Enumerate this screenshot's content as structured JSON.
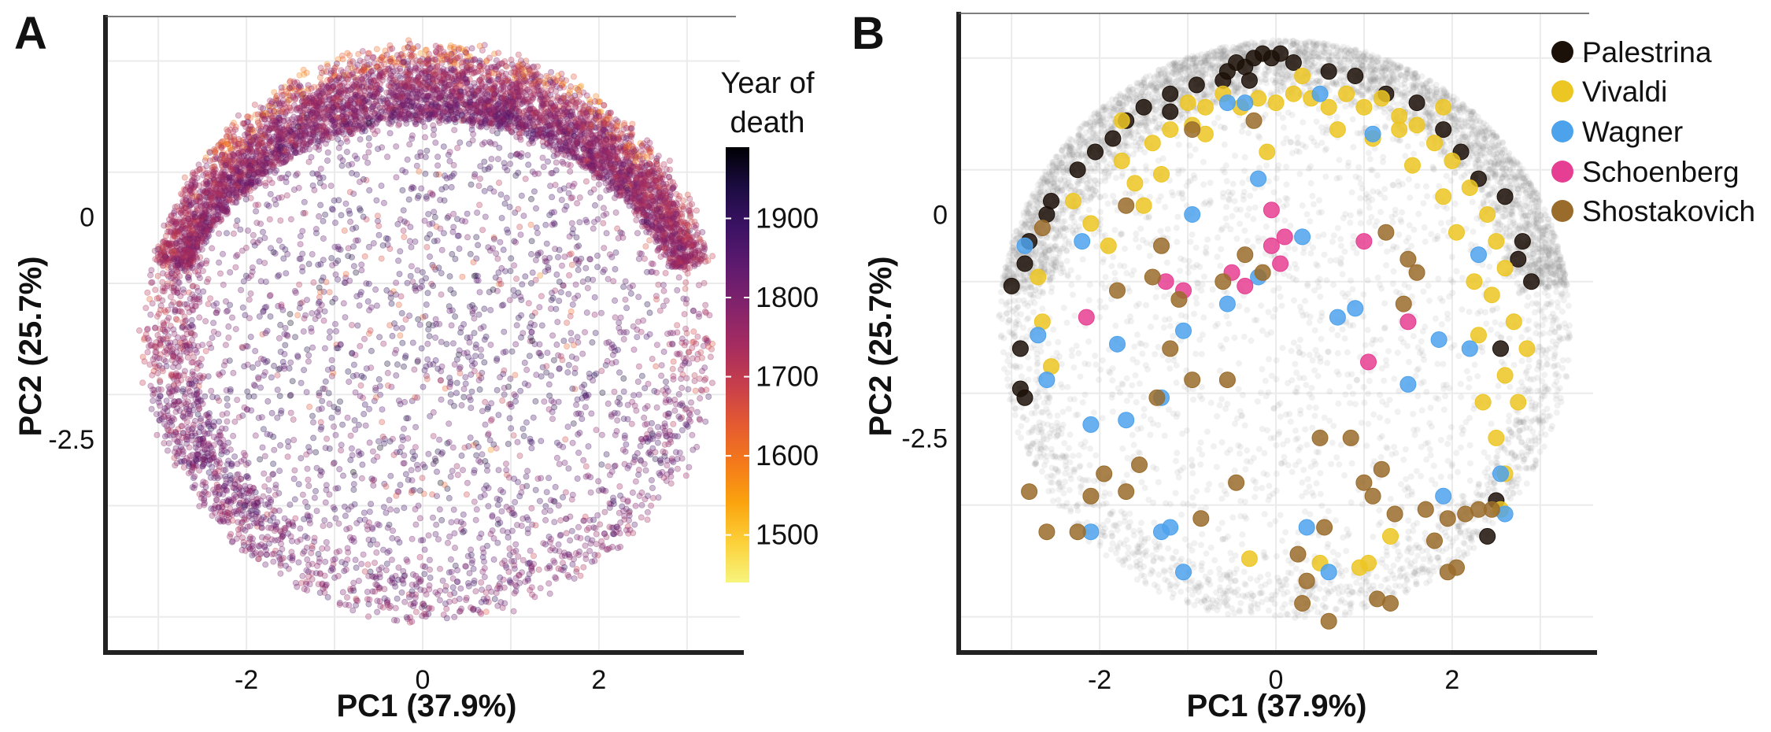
{
  "colors": {
    "inferno_ramp": [
      "#f7f47d",
      "#fcd13a",
      "#fba40e",
      "#f47a1a",
      "#e45a31",
      "#c73e4c",
      "#a52c60",
      "#83236c",
      "#5e1a6e",
      "#3b1264",
      "#1b0c41",
      "#000004"
    ],
    "background_points": "#888888",
    "axis": "#222222",
    "grid": "#ebebeb"
  },
  "chart_data": [
    {
      "panel": "A",
      "type": "scatter",
      "title": "",
      "xlabel": "PC1 (37.9%)",
      "ylabel": "PC2 (25.7%)",
      "xlim": [
        -3.6,
        3.6
      ],
      "ylim": [
        -4.9,
        2.25
      ],
      "x_ticks": [
        -2,
        0,
        2
      ],
      "x_tick_labels": [
        "-2",
        "0",
        "2"
      ],
      "y_ticks": [
        0,
        -2.5
      ],
      "y_tick_labels": [
        "0",
        "-2.5"
      ],
      "grid": true,
      "color_by": "Year of death",
      "colorbar": {
        "title_lines": [
          "Year of",
          "death"
        ],
        "range": [
          1440,
          1990
        ],
        "ticks": [
          1500,
          1600,
          1700,
          1800,
          1900
        ],
        "tick_labels": [
          "1500",
          "1600",
          "1700",
          "1800",
          "1900"
        ],
        "placement": "right"
      },
      "point_cloud": {
        "shape": "disc",
        "center": [
          0.1,
          -1.3
        ],
        "radii": [
          3.25,
          3.25
        ],
        "n_points": 9000,
        "dense_band": "upper rim",
        "band_inner_radius_fraction": 0.72,
        "year_trend": "rim points mostly 1700-1800 (magenta), interior points mostly 1800-1900 (purple), scattered orange/yellow near the top rim",
        "alpha": 0.3
      }
    },
    {
      "panel": "B",
      "type": "scatter",
      "title": "",
      "xlabel": "PC1 (37.9%)",
      "ylabel": "PC2 (25.7%)",
      "xlim": [
        -3.6,
        3.6
      ],
      "ylim": [
        -4.9,
        2.25
      ],
      "x_ticks": [
        -2,
        0,
        2
      ],
      "x_tick_labels": [
        "-2",
        "0",
        "2"
      ],
      "y_ticks": [
        0,
        -2.5
      ],
      "y_tick_labels": [
        "0",
        "-2.5"
      ],
      "grid": true,
      "legend_placement": "top-right",
      "background_cloud": {
        "color": "#888888",
        "alpha": 0.12,
        "n_points": 6500
      },
      "series": [
        {
          "name": "Palestrina",
          "color": "#1c1108",
          "region": "top rim, dense cluster near PC1 -0.5 to 0.2, PC2 about 1.7",
          "points": [
            [
              -0.55,
              1.6
            ],
            [
              -0.45,
              1.7
            ],
            [
              -0.35,
              1.65
            ],
            [
              -0.25,
              1.75
            ],
            [
              -0.15,
              1.8
            ],
            [
              -0.05,
              1.75
            ],
            [
              0.05,
              1.8
            ],
            [
              -0.3,
              1.5
            ],
            [
              -0.6,
              1.5
            ],
            [
              -0.9,
              1.45
            ],
            [
              -1.2,
              1.35
            ],
            [
              -1.5,
              1.2
            ],
            [
              -1.7,
              1.05
            ],
            [
              -1.85,
              0.85
            ],
            [
              -2.05,
              0.7
            ],
            [
              -2.25,
              0.5
            ],
            [
              -2.55,
              0.15
            ],
            [
              -2.8,
              -0.3
            ],
            [
              -2.85,
              -0.55
            ],
            [
              -3.0,
              -0.8
            ],
            [
              -2.9,
              -1.5
            ],
            [
              -2.85,
              -2.05
            ],
            [
              -2.9,
              -1.95
            ],
            [
              0.6,
              1.6
            ],
            [
              0.9,
              1.55
            ],
            [
              1.25,
              1.35
            ],
            [
              1.6,
              1.25
            ],
            [
              1.9,
              0.95
            ],
            [
              2.1,
              0.7
            ],
            [
              2.3,
              0.4
            ],
            [
              2.6,
              0.2
            ],
            [
              2.8,
              -0.3
            ],
            [
              2.9,
              -0.75
            ],
            [
              2.75,
              -0.5
            ],
            [
              2.55,
              -1.5
            ],
            [
              2.5,
              -3.2
            ],
            [
              2.4,
              -3.6
            ],
            [
              -2.6,
              0.0
            ],
            [
              -1.2,
              1.15
            ],
            [
              0.2,
              1.7
            ]
          ]
        },
        {
          "name": "Vivaldi",
          "color": "#ecc623",
          "region": "upper band and right rim",
          "points": [
            [
              -2.3,
              0.15
            ],
            [
              -2.1,
              -0.1
            ],
            [
              -1.9,
              -0.35
            ],
            [
              -1.75,
              0.6
            ],
            [
              -1.6,
              0.35
            ],
            [
              -1.4,
              0.8
            ],
            [
              -1.2,
              0.95
            ],
            [
              -1.0,
              1.25
            ],
            [
              -0.8,
              1.2
            ],
            [
              -0.6,
              1.35
            ],
            [
              -0.4,
              1.2
            ],
            [
              -0.2,
              1.3
            ],
            [
              0.0,
              1.25
            ],
            [
              0.2,
              1.35
            ],
            [
              0.4,
              1.3
            ],
            [
              0.6,
              1.2
            ],
            [
              0.8,
              1.35
            ],
            [
              1.0,
              1.2
            ],
            [
              1.2,
              1.3
            ],
            [
              1.4,
              1.1
            ],
            [
              1.6,
              1.0
            ],
            [
              1.8,
              0.8
            ],
            [
              2.0,
              0.6
            ],
            [
              2.2,
              0.3
            ],
            [
              2.4,
              0.0
            ],
            [
              2.5,
              -0.3
            ],
            [
              2.6,
              -0.6
            ],
            [
              2.45,
              -0.9
            ],
            [
              2.7,
              -1.2
            ],
            [
              2.85,
              -1.5
            ],
            [
              2.6,
              -1.8
            ],
            [
              2.35,
              -2.1
            ],
            [
              2.5,
              -2.5
            ],
            [
              2.6,
              -2.9
            ],
            [
              2.55,
              -3.3
            ],
            [
              -2.7,
              -0.7
            ],
            [
              -2.65,
              -1.2
            ],
            [
              -2.55,
              -1.7
            ],
            [
              -0.95,
              1.0
            ],
            [
              -1.5,
              0.1
            ],
            [
              -1.3,
              0.45
            ],
            [
              -0.8,
              0.9
            ],
            [
              -0.1,
              0.7
            ],
            [
              1.1,
              0.85
            ],
            [
              1.55,
              0.55
            ],
            [
              1.9,
              0.2
            ],
            [
              2.05,
              -0.2
            ],
            [
              2.25,
              -0.75
            ],
            [
              2.3,
              -1.35
            ],
            [
              2.75,
              -2.1
            ],
            [
              1.4,
              0.95
            ],
            [
              0.7,
              0.95
            ],
            [
              1.05,
              -3.9
            ],
            [
              1.3,
              -3.6
            ],
            [
              0.5,
              -3.9
            ],
            [
              0.95,
              -3.95
            ],
            [
              -0.3,
              -3.85
            ],
            [
              -1.75,
              1.05
            ],
            [
              0.3,
              1.55
            ],
            [
              1.9,
              1.2
            ]
          ]
        },
        {
          "name": "Wagner",
          "color": "#4da2ec",
          "region": "scattered over the whole disc",
          "points": [
            [
              -2.85,
              -0.35
            ],
            [
              -2.7,
              -1.35
            ],
            [
              -2.6,
              -1.85
            ],
            [
              -2.2,
              -0.3
            ],
            [
              -2.1,
              -2.35
            ],
            [
              -1.8,
              -1.45
            ],
            [
              -1.7,
              -2.3
            ],
            [
              -1.3,
              -2.05
            ],
            [
              -1.3,
              -3.55
            ],
            [
              -1.2,
              -3.5
            ],
            [
              -1.05,
              -1.3
            ],
            [
              -0.95,
              0.0
            ],
            [
              -0.55,
              -1.0
            ],
            [
              -0.55,
              1.25
            ],
            [
              -0.2,
              0.4
            ],
            [
              -0.2,
              -0.7
            ],
            [
              0.3,
              -0.25
            ],
            [
              0.35,
              -3.5
            ],
            [
              0.7,
              -1.15
            ],
            [
              0.9,
              -1.05
            ],
            [
              1.1,
              0.9
            ],
            [
              1.5,
              -1.9
            ],
            [
              1.85,
              -1.4
            ],
            [
              2.2,
              -1.5
            ],
            [
              2.55,
              -2.9
            ],
            [
              2.6,
              -3.35
            ],
            [
              1.9,
              -3.15
            ],
            [
              -1.05,
              -4.0
            ],
            [
              -2.1,
              -3.55
            ],
            [
              0.5,
              1.35
            ],
            [
              2.3,
              -0.45
            ],
            [
              -0.35,
              1.25
            ],
            [
              0.6,
              -4.0
            ]
          ]
        },
        {
          "name": "Schoenberg",
          "color": "#e63e92",
          "region": "interior",
          "points": [
            [
              -0.05,
              0.05
            ],
            [
              -0.05,
              -0.35
            ],
            [
              0.1,
              -0.25
            ],
            [
              0.05,
              -0.55
            ],
            [
              -0.35,
              -0.8
            ],
            [
              -0.5,
              -0.65
            ],
            [
              -1.05,
              -0.85
            ],
            [
              -1.25,
              -0.75
            ],
            [
              -2.15,
              -1.15
            ],
            [
              1.0,
              -0.3
            ],
            [
              1.5,
              -1.2
            ],
            [
              1.05,
              -1.65
            ]
          ]
        },
        {
          "name": "Shostakovich",
          "color": "#9a6c2b",
          "region": "interior, concentrated in the lower half",
          "points": [
            [
              -2.8,
              -3.1
            ],
            [
              -2.6,
              -3.55
            ],
            [
              -2.25,
              -3.55
            ],
            [
              -2.1,
              -3.15
            ],
            [
              -1.95,
              -2.9
            ],
            [
              -1.8,
              -0.85
            ],
            [
              -1.7,
              -3.1
            ],
            [
              -1.55,
              -2.8
            ],
            [
              -1.4,
              -0.7
            ],
            [
              -1.35,
              -2.05
            ],
            [
              -1.3,
              -0.35
            ],
            [
              -1.2,
              -1.5
            ],
            [
              -1.1,
              -0.95
            ],
            [
              -0.95,
              -1.85
            ],
            [
              -0.85,
              -3.4
            ],
            [
              -0.6,
              -0.75
            ],
            [
              -0.55,
              -1.85
            ],
            [
              -0.45,
              -3.0
            ],
            [
              -0.35,
              -0.45
            ],
            [
              -0.25,
              1.05
            ],
            [
              -0.15,
              -0.65
            ],
            [
              0.25,
              -3.8
            ],
            [
              0.3,
              -4.35
            ],
            [
              0.35,
              -4.1
            ],
            [
              0.55,
              -3.5
            ],
            [
              0.6,
              -4.55
            ],
            [
              0.85,
              -2.5
            ],
            [
              1.0,
              -3.0
            ],
            [
              1.1,
              -3.15
            ],
            [
              1.15,
              -4.3
            ],
            [
              1.2,
              -2.85
            ],
            [
              1.25,
              -0.2
            ],
            [
              1.3,
              -4.35
            ],
            [
              1.35,
              -3.35
            ],
            [
              1.45,
              -1.0
            ],
            [
              1.5,
              -0.5
            ],
            [
              1.6,
              -0.65
            ],
            [
              1.7,
              -3.3
            ],
            [
              1.8,
              -3.65
            ],
            [
              1.95,
              -4.0
            ],
            [
              2.05,
              -3.95
            ],
            [
              2.15,
              -3.35
            ],
            [
              2.3,
              -3.3
            ],
            [
              2.45,
              -3.3
            ],
            [
              1.95,
              -3.4
            ],
            [
              -1.7,
              0.1
            ],
            [
              -2.65,
              -0.15
            ],
            [
              -0.95,
              0.95
            ],
            [
              0.5,
              -2.5
            ]
          ]
        }
      ]
    }
  ]
}
